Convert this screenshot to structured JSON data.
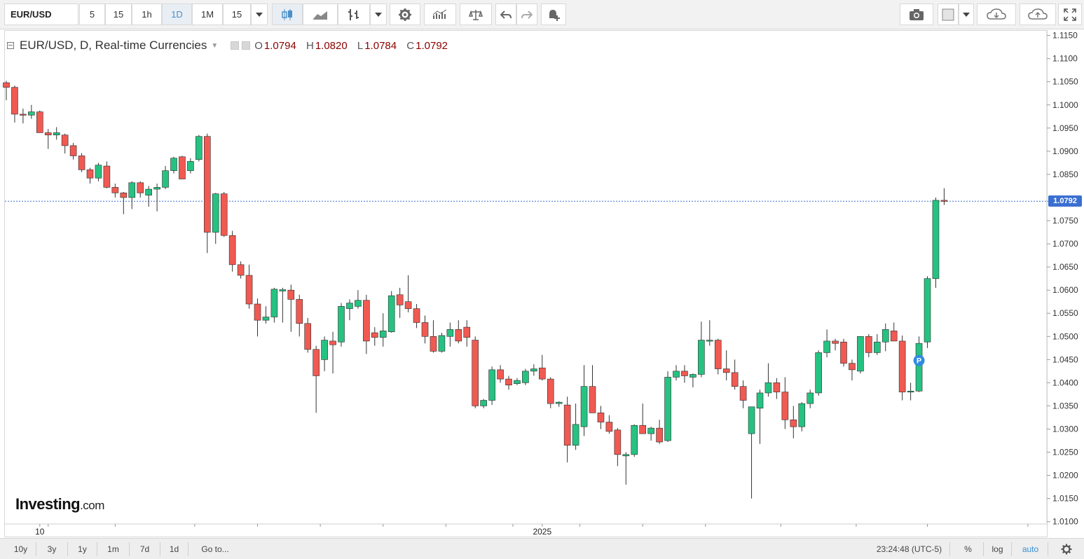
{
  "toolbar": {
    "symbol": "EUR/USD",
    "intervals": [
      "5",
      "15",
      "1h",
      "1D",
      "1M",
      "15"
    ],
    "active_interval": "1D"
  },
  "legend": {
    "title": "EUR/USD, D, Real-time Currencies",
    "o_label": "O",
    "o_value": "1.0794",
    "h_label": "H",
    "h_value": "1.0820",
    "l_label": "L",
    "l_value": "1.0784",
    "c_label": "C",
    "c_value": "1.0792"
  },
  "logo": {
    "brand": "Investing",
    "suffix": ".com"
  },
  "price_label": "1.0792",
  "bottom_bar": {
    "ranges": [
      "10y",
      "3y",
      "1y",
      "1m",
      "7d",
      "1d"
    ],
    "goto": "Go to...",
    "clock": "23:24:48 (UTC-5)",
    "percent": "%",
    "log": "log",
    "auto": "auto"
  },
  "colors": {
    "up": "#26c281",
    "down": "#f05a52",
    "price_line": "#3a6fd1",
    "accent": "#3a8fd1"
  },
  "chart_data": {
    "type": "candlestick",
    "title": "EUR/USD, D, Real-time Currencies",
    "x_labels": [
      "10",
      "2025"
    ],
    "x_label_positions": [
      4,
      64
    ],
    "y_ticks": [
      1.01,
      1.015,
      1.02,
      1.025,
      1.03,
      1.035,
      1.04,
      1.045,
      1.05,
      1.055,
      1.06,
      1.065,
      1.07,
      1.075,
      1.0792,
      1.085,
      1.09,
      1.095,
      1.1,
      1.105,
      1.11,
      1.115
    ],
    "ylim": [
      1.0095,
      1.116
    ],
    "last_price": 1.0792,
    "marker": {
      "text": "P",
      "index": 109
    },
    "ohlc": [
      [
        1.1048,
        1.1052,
        1.101,
        1.1038
      ],
      [
        1.1038,
        1.1042,
        1.0962,
        1.098
      ],
      [
        1.098,
        1.0992,
        1.096,
        1.0978
      ],
      [
        1.0978,
        1.1,
        1.097,
        1.0985
      ],
      [
        1.0985,
        1.0988,
        1.094,
        1.094
      ],
      [
        1.094,
        1.0948,
        1.0905,
        1.0935
      ],
      [
        1.0935,
        1.0952,
        1.0925,
        1.094
      ],
      [
        1.0935,
        1.0938,
        1.0895,
        1.0912
      ],
      [
        1.0912,
        1.0918,
        1.0882,
        1.089
      ],
      [
        1.089,
        1.0896,
        1.0855,
        1.086
      ],
      [
        1.086,
        1.0864,
        1.083,
        1.0842
      ],
      [
        1.0842,
        1.0875,
        1.0835,
        1.087
      ],
      [
        1.0868,
        1.0878,
        1.082,
        1.0822
      ],
      [
        1.0822,
        1.083,
        1.08,
        1.081
      ],
      [
        1.081,
        1.0812,
        1.0764,
        1.08
      ],
      [
        1.08,
        1.0835,
        1.0775,
        1.0832
      ],
      [
        1.0832,
        1.0835,
        1.08,
        1.081
      ],
      [
        1.0805,
        1.0825,
        1.078,
        1.0818
      ],
      [
        1.0818,
        1.083,
        1.077,
        1.0822
      ],
      [
        1.0822,
        1.0868,
        1.0818,
        1.0858
      ],
      [
        1.0858,
        1.0888,
        1.0852,
        1.0885
      ],
      [
        1.0888,
        1.089,
        1.084,
        1.084
      ],
      [
        1.0858,
        1.0885,
        1.0852,
        1.0878
      ],
      [
        1.0882,
        1.0935,
        1.0878,
        1.0932
      ],
      [
        1.0932,
        1.0938,
        1.068,
        1.0725
      ],
      [
        1.0725,
        1.081,
        1.07,
        1.0808
      ],
      [
        1.0808,
        1.0812,
        1.0715,
        1.0718
      ],
      [
        1.0718,
        1.0728,
        1.064,
        1.0655
      ],
      [
        1.0655,
        1.0662,
        1.0625,
        1.0632
      ],
      [
        1.0632,
        1.0655,
        1.056,
        1.057
      ],
      [
        1.057,
        1.0582,
        1.05,
        1.0535
      ],
      [
        1.0535,
        1.0565,
        1.0528,
        1.0542
      ],
      [
        1.0542,
        1.0605,
        1.053,
        1.0602
      ],
      [
        1.0598,
        1.0605,
        1.053,
        1.0601
      ],
      [
        1.06,
        1.0612,
        1.051,
        1.058
      ],
      [
        1.058,
        1.059,
        1.05,
        1.0528
      ],
      [
        1.0528,
        1.054,
        1.0465,
        1.0472
      ],
      [
        1.0472,
        1.048,
        1.0335,
        1.0415
      ],
      [
        1.045,
        1.05,
        1.0425,
        1.0492
      ],
      [
        1.049,
        1.051,
        1.042,
        1.0482
      ],
      [
        1.0488,
        1.0572,
        1.0478,
        1.0565
      ],
      [
        1.056,
        1.058,
        1.0535,
        1.0572
      ],
      [
        1.0565,
        1.06,
        1.056,
        1.0578
      ],
      [
        1.0578,
        1.059,
        1.0462,
        1.049
      ],
      [
        1.0508,
        1.052,
        1.048,
        1.0498
      ],
      [
        1.0498,
        1.055,
        1.0478,
        1.0512
      ],
      [
        1.051,
        1.0598,
        1.0508,
        1.0588
      ],
      [
        1.059,
        1.0605,
        1.054,
        1.0568
      ],
      [
        1.0575,
        1.0632,
        1.0552,
        1.056
      ],
      [
        1.056,
        1.057,
        1.0518,
        1.053
      ],
      [
        1.053,
        1.0545,
        1.0485,
        1.05
      ],
      [
        1.05,
        1.0535,
        1.0465,
        1.0468
      ],
      [
        1.0468,
        1.0508,
        1.0465,
        1.0502
      ],
      [
        1.05,
        1.053,
        1.0478,
        1.0515
      ],
      [
        1.0515,
        1.0535,
        1.0485,
        1.049
      ],
      [
        1.052,
        1.0535,
        1.0478,
        1.0498
      ],
      [
        1.0492,
        1.05,
        1.0345,
        1.035
      ],
      [
        1.035,
        1.0365,
        1.0345,
        1.0362
      ],
      [
        1.0362,
        1.0435,
        1.0352,
        1.0428
      ],
      [
        1.0428,
        1.0438,
        1.04,
        1.0408
      ],
      [
        1.0408,
        1.0415,
        1.0385,
        1.0395
      ],
      [
        1.0398,
        1.041,
        1.0395,
        1.0405
      ],
      [
        1.04,
        1.043,
        1.0395,
        1.0425
      ],
      [
        1.0425,
        1.044,
        1.0415,
        1.043
      ],
      [
        1.0432,
        1.046,
        1.0405,
        1.0408
      ],
      [
        1.0408,
        1.0412,
        1.0345,
        1.0355
      ],
      [
        1.0355,
        1.036,
        1.0348,
        1.0358
      ],
      [
        1.0352,
        1.037,
        1.0228,
        1.0265
      ],
      [
        1.0265,
        1.0355,
        1.0255,
        1.031
      ],
      [
        1.0305,
        1.0438,
        1.0285,
        1.0392
      ],
      [
        1.0392,
        1.0438,
        1.034,
        1.0335
      ],
      [
        1.0335,
        1.035,
        1.03,
        1.0315
      ],
      [
        1.0315,
        1.033,
        1.029,
        1.0295
      ],
      [
        1.0298,
        1.0302,
        1.022,
        1.0245
      ],
      [
        1.0242,
        1.025,
        1.018,
        1.0245
      ],
      [
        1.0245,
        1.031,
        1.024,
        1.0308
      ],
      [
        1.0308,
        1.0355,
        1.029,
        1.029
      ],
      [
        1.029,
        1.0305,
        1.0275,
        1.0302
      ],
      [
        1.0302,
        1.032,
        1.0268,
        1.0272
      ],
      [
        1.0275,
        1.0425,
        1.0272,
        1.0412
      ],
      [
        1.0412,
        1.0438,
        1.0405,
        1.0425
      ],
      [
        1.0425,
        1.0438,
        1.04,
        1.0415
      ],
      [
        1.0412,
        1.042,
        1.039,
        1.0418
      ],
      [
        1.0418,
        1.0532,
        1.0412,
        1.0492
      ],
      [
        1.0492,
        1.0535,
        1.048,
        1.0492
      ],
      [
        1.0492,
        1.0495,
        1.0418,
        1.043
      ],
      [
        1.043,
        1.047,
        1.0405,
        1.0422
      ],
      [
        1.0422,
        1.045,
        1.0385,
        1.0392
      ],
      [
        1.0392,
        1.0405,
        1.0345,
        1.0362
      ],
      [
        1.029,
        1.034,
        1.015,
        1.0348
      ],
      [
        1.0345,
        1.0385,
        1.0268,
        1.0378
      ],
      [
        1.0378,
        1.0442,
        1.037,
        1.04
      ],
      [
        1.04,
        1.041,
        1.0365,
        1.038
      ],
      [
        1.038,
        1.0412,
        1.03,
        1.032
      ],
      [
        1.032,
        1.035,
        1.028,
        1.0305
      ],
      [
        1.0305,
        1.0358,
        1.0295,
        1.0355
      ],
      [
        1.0355,
        1.0385,
        1.0345,
        1.0378
      ],
      [
        1.0378,
        1.047,
        1.0372,
        1.0465
      ],
      [
        1.0465,
        1.0515,
        1.0455,
        1.049
      ],
      [
        1.049,
        1.0495,
        1.047,
        1.0485
      ],
      [
        1.0488,
        1.0495,
        1.0435,
        1.0442
      ],
      [
        1.0442,
        1.045,
        1.0405,
        1.0428
      ],
      [
        1.0425,
        1.05,
        1.042,
        1.05
      ],
      [
        1.05,
        1.0505,
        1.0455,
        1.0465
      ],
      [
        1.0465,
        1.0505,
        1.046,
        1.0488
      ],
      [
        1.0488,
        1.0528,
        1.0468,
        1.0515
      ],
      [
        1.0512,
        1.053,
        1.049,
        1.049
      ],
      [
        1.049,
        1.0502,
        1.0362,
        1.038
      ],
      [
        1.038,
        1.04,
        1.0362,
        1.0382
      ],
      [
        1.0382,
        1.05,
        1.038,
        1.0485
      ],
      [
        1.0488,
        1.063,
        1.0475,
        1.0625
      ],
      [
        1.0625,
        1.08,
        1.0605,
        1.0794
      ],
      [
        1.0794,
        1.082,
        1.0784,
        1.0792
      ]
    ]
  }
}
